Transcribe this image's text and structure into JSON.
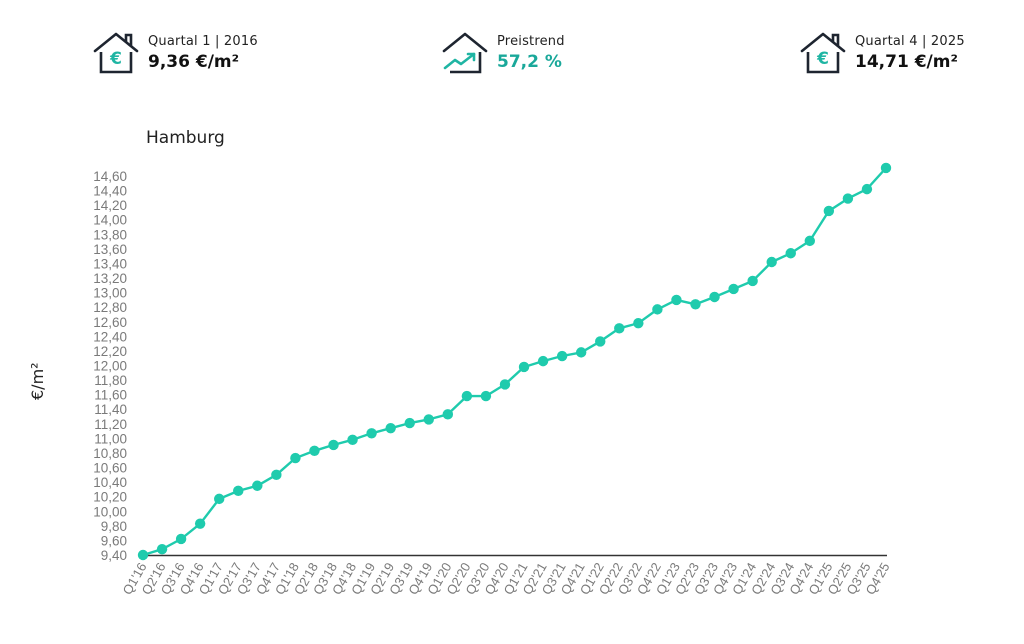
{
  "kpis": [
    {
      "icon": "house-euro-icon",
      "label": "Quartal 1 | 2016",
      "value": "9,36 €/m²"
    },
    {
      "icon": "house-trend-icon",
      "label": "Preistrend",
      "value": "57,2 %"
    },
    {
      "icon": "house-euro-icon",
      "label": "Quartal 4 | 2025",
      "value": "14,71 €/m²"
    }
  ],
  "colors": {
    "accent": "#1fcbad",
    "accent_text": "#1aa89a",
    "icon_dark": "#1e2530",
    "axis": "#333333",
    "tick": "#7a7a7a"
  },
  "chart_data": {
    "type": "line",
    "title": "Hamburg",
    "xlabel": "",
    "ylabel": "€/m²",
    "ylim": [
      9.4,
      14.6
    ],
    "grid": false,
    "legend": null,
    "y_ticks": [
      "9,40",
      "9,60",
      "9,80",
      "10,00",
      "10,20",
      "10,40",
      "10,60",
      "10,80",
      "11,00",
      "11,20",
      "11,40",
      "11,60",
      "11,80",
      "12,00",
      "12,20",
      "12,40",
      "12,60",
      "12,80",
      "13,00",
      "13,20",
      "13,40",
      "13,60",
      "13,80",
      "14,00",
      "14,20",
      "14,40",
      "14,60"
    ],
    "categories": [
      "Q1'16",
      "Q2'16",
      "Q3'16",
      "Q4'16",
      "Q1'17",
      "Q2'17",
      "Q3'17",
      "Q4'17",
      "Q1'18",
      "Q2'18",
      "Q3'18",
      "Q4'18",
      "Q1'19",
      "Q2'19",
      "Q3'19",
      "Q4'19",
      "Q1'20",
      "Q2'20",
      "Q3'20",
      "Q4'20",
      "Q1'21",
      "Q2'21",
      "Q3'21",
      "Q4'21",
      "Q1'22",
      "Q2'22",
      "Q3'22",
      "Q4'22",
      "Q1'23",
      "Q2'23",
      "Q3'23",
      "Q4'23",
      "Q1'24",
      "Q2'24",
      "Q3'24",
      "Q4'24",
      "Q1'25",
      "Q2'25",
      "Q3'25",
      "Q4'25"
    ],
    "series": [
      {
        "name": "Hamburg",
        "values": [
          9.36,
          9.48,
          9.62,
          9.83,
          10.17,
          10.28,
          10.35,
          10.5,
          10.73,
          10.83,
          10.91,
          10.98,
          11.07,
          11.14,
          11.21,
          11.26,
          11.33,
          11.58,
          11.58,
          11.74,
          11.98,
          12.06,
          12.13,
          12.18,
          12.33,
          12.51,
          12.58,
          12.77,
          12.9,
          12.84,
          12.94,
          13.05,
          13.16,
          13.42,
          13.54,
          13.71,
          14.12,
          14.29,
          14.42,
          14.71
        ]
      }
    ]
  }
}
